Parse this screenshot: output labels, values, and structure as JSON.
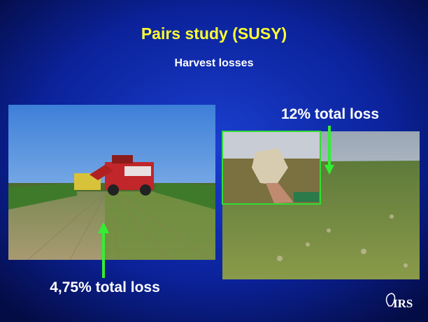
{
  "slide": {
    "title": "Pairs study (SUSY)",
    "subtitle": "Harvest losses",
    "right_label": "12% total loss",
    "left_label": "4,75% total loss",
    "logo": "IRS"
  }
}
